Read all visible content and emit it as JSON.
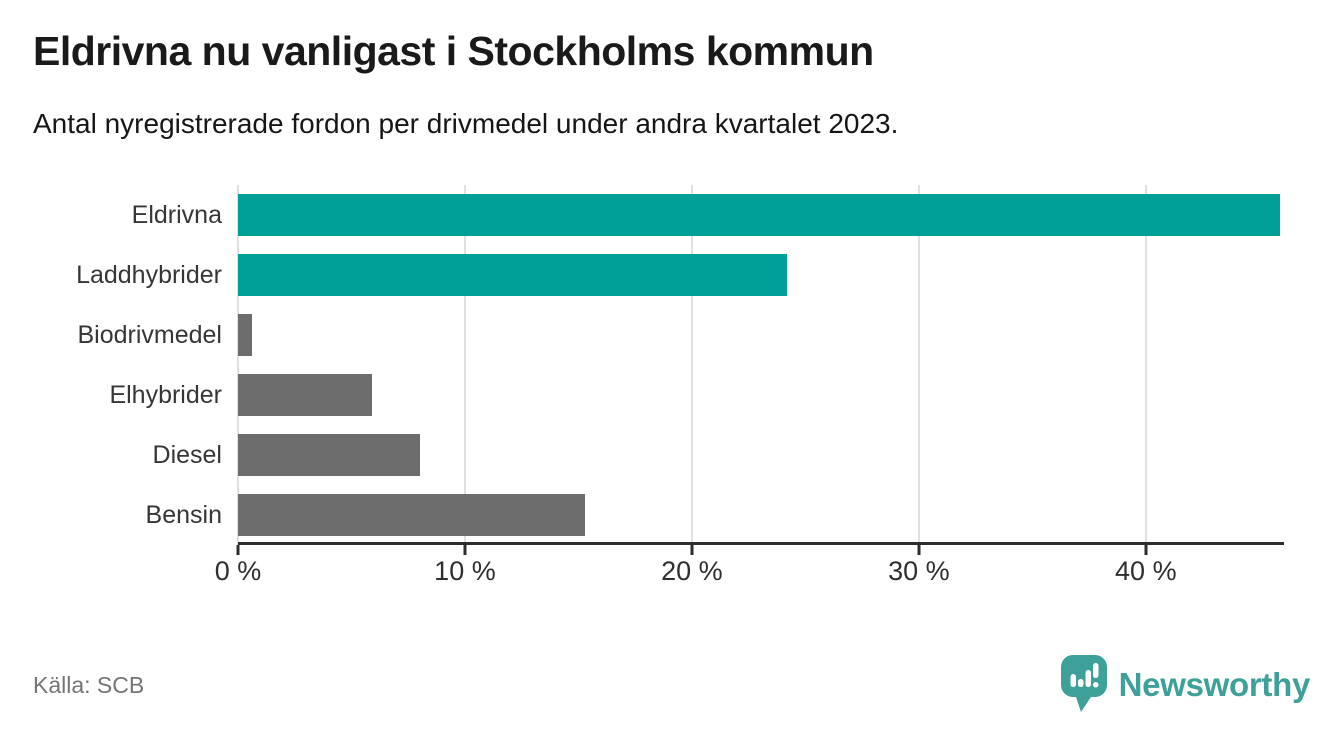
{
  "header": {
    "title": "Eldrivna nu vanligast i Stockholms kommun",
    "subtitle": "Antal nyregistrerade fordon per drivmedel under andra kvartalet 2023."
  },
  "chart_data": {
    "type": "bar",
    "orientation": "horizontal",
    "title": "Eldrivna nu vanligast i Stockholms kommun",
    "subtitle": "Antal nyregistrerade fordon per drivmedel under andra kvartalet 2023.",
    "categories": [
      "Eldrivna",
      "Laddhybrider",
      "Biodrivmedel",
      "Elhybrider",
      "Diesel",
      "Bensin"
    ],
    "values": [
      45.9,
      24.2,
      0.6,
      5.9,
      8.0,
      15.3
    ],
    "unit": "%",
    "xlim": [
      0,
      46
    ],
    "x_tick_values": [
      0,
      10,
      20,
      30,
      40
    ],
    "x_tick_labels": [
      "0 %",
      "10 %",
      "20 %",
      "30 %",
      "40 %"
    ],
    "grid": true,
    "legend": false,
    "highlight_color": "#00a096",
    "default_color": "#6d6d6d",
    "bar_colors": [
      "#00a096",
      "#00a096",
      "#6d6d6d",
      "#6d6d6d",
      "#6d6d6d",
      "#6d6d6d"
    ]
  },
  "footer": {
    "source": "Källa: SCB",
    "brand_name": "Newsworthy",
    "brand_color": "#3da099"
  }
}
